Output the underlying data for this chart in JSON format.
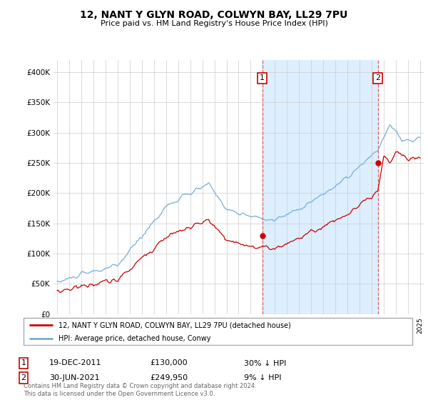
{
  "title": "12, NANT Y GLYN ROAD, COLWYN BAY, LL29 7PU",
  "subtitle": "Price paid vs. HM Land Registry's House Price Index (HPI)",
  "ylim": [
    0,
    420000
  ],
  "yticks": [
    0,
    50000,
    100000,
    150000,
    200000,
    250000,
    300000,
    350000,
    400000
  ],
  "ytick_labels": [
    "£0",
    "£50K",
    "£100K",
    "£150K",
    "£200K",
    "£250K",
    "£300K",
    "£350K",
    "£400K"
  ],
  "hpi_color": "#7aaed6",
  "price_color": "#cc0000",
  "vline_color": "#e06060",
  "shade_color": "#ddeeff",
  "annotation_border_color": "#cc0000",
  "legend_label_red": "12, NANT Y GLYN ROAD, COLWYN BAY, LL29 7PU (detached house)",
  "legend_label_blue": "HPI: Average price, detached house, Conwy",
  "purchase1_date": "19-DEC-2011",
  "purchase1_price": "£130,000",
  "purchase1_hpi": "30% ↓ HPI",
  "purchase1_label": "1",
  "purchase2_date": "30-JUN-2021",
  "purchase2_price": "£249,950",
  "purchase2_hpi": "9% ↓ HPI",
  "purchase2_label": "2",
  "footer": "Contains HM Land Registry data © Crown copyright and database right 2024.\nThis data is licensed under the Open Government Licence v3.0.",
  "purchase1_x": 2011.96,
  "purchase1_y": 130000,
  "purchase2_x": 2021.5,
  "purchase2_y": 249950,
  "xlim_left": 1994.7,
  "xlim_right": 2025.3
}
